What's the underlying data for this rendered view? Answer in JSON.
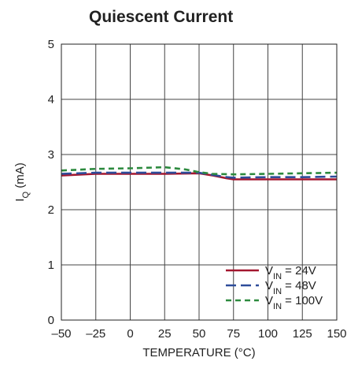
{
  "chart_data": {
    "type": "line",
    "title": "Quiescent Current",
    "xlabel": "TEMPERATURE (°C)",
    "ylabel": {
      "main": "I",
      "sub": "Q",
      "suffix": " (mA)"
    },
    "xlim": [
      -50,
      150
    ],
    "ylim": [
      0,
      5
    ],
    "xticks": [
      -50,
      -25,
      0,
      25,
      50,
      75,
      100,
      125,
      150
    ],
    "xtick_labels": [
      "–50",
      "–25",
      "0",
      "25",
      "50",
      "75",
      "100",
      "125",
      "150"
    ],
    "yticks": [
      0,
      1,
      2,
      3,
      4,
      5
    ],
    "ytick_labels": [
      "0",
      "1",
      "2",
      "3",
      "4",
      "5"
    ],
    "grid": true,
    "legend_position": "bottom-right",
    "series": [
      {
        "name": "V_IN = 24V",
        "legend": {
          "main": "V",
          "sub": "IN",
          "suffix": " = 24V"
        },
        "color": "#a3172f",
        "dash": "solid",
        "x": [
          -50,
          -25,
          0,
          25,
          50,
          60,
          70,
          75,
          100,
          125,
          150
        ],
        "y": [
          2.62,
          2.65,
          2.65,
          2.65,
          2.66,
          2.62,
          2.57,
          2.55,
          2.55,
          2.55,
          2.55
        ]
      },
      {
        "name": "V_IN = 48V",
        "legend": {
          "main": "V",
          "sub": "IN",
          "suffix": " = 48V"
        },
        "color": "#2e4d9a",
        "dash": "long-dash",
        "x": [
          -50,
          -25,
          0,
          25,
          50,
          60,
          70,
          75,
          100,
          125,
          150
        ],
        "y": [
          2.65,
          2.67,
          2.67,
          2.67,
          2.67,
          2.63,
          2.59,
          2.58,
          2.59,
          2.59,
          2.6
        ]
      },
      {
        "name": "V_IN = 100V",
        "legend": {
          "main": "V",
          "sub": "IN",
          "suffix": " = 100V"
        },
        "color": "#2c8a3e",
        "dash": "short-dash",
        "x": [
          -50,
          -25,
          0,
          25,
          40,
          50,
          60,
          75,
          100,
          125,
          150
        ],
        "y": [
          2.71,
          2.74,
          2.75,
          2.77,
          2.73,
          2.68,
          2.65,
          2.64,
          2.65,
          2.66,
          2.67
        ]
      }
    ]
  }
}
